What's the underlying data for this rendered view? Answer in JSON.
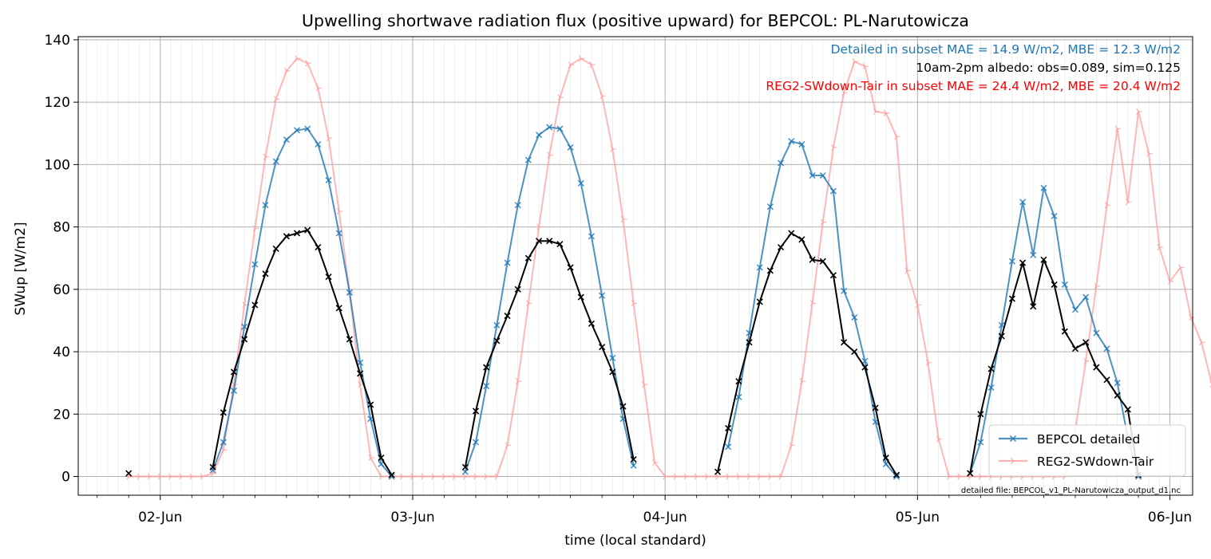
{
  "chart_data": {
    "type": "line",
    "title": "Upwelling shortwave radiation flux (positive upward) for BEPCOL: PL-Narutowicza",
    "xlabel": "time (local standard)",
    "ylabel": "SWup [W/m2]",
    "ylim": [
      -6,
      141
    ],
    "yticks": [
      0,
      20,
      40,
      60,
      80,
      100,
      120,
      140
    ],
    "xlim": [
      1.675,
      6.09
    ],
    "xticks": [
      {
        "label": "02-Jun",
        "day": 2
      },
      {
        "label": "03-Jun",
        "day": 3
      },
      {
        "label": "04-Jun",
        "day": 4
      },
      {
        "label": "05-Jun",
        "day": 5
      },
      {
        "label": "06-Jun",
        "day": 6
      }
    ],
    "grid": true,
    "legend_position": "lower-right",
    "annotations": [
      {
        "text": "Detailed in subset MAE = 14.9 W/m2, MBE = 12.3 W/m2",
        "color": "#1f77b4"
      },
      {
        "text": "10am-2pm albedo: obs=0.089, sim=0.125",
        "color": "#000000"
      },
      {
        "text": "REG2-SWdown-Tair in subset MAE = 24.4 W/m2, MBE = 20.4 W/m2",
        "color": "#ff0000"
      }
    ],
    "footnote": "detailed file: BEPCOL_v1_PL-Narutowicza_output_d1.nc",
    "time_step_hours": 1,
    "series": [
      {
        "name": "BEPCOL detailed",
        "color": "#1f77b4",
        "marker": "x",
        "segments": [
          {
            "start_day": 2,
            "start_hour": 5,
            "values": [
              2,
              11,
              27.5,
              48,
              68,
              87,
              101,
              108,
              111,
              111.5,
              106.5,
              95,
              78,
              59,
              36.5,
              18.5,
              4,
              0
            ]
          },
          {
            "start_day": 3,
            "start_hour": 5,
            "values": [
              1.5,
              11,
              29,
              48.5,
              68.5,
              87,
              101.5,
              109.5,
              112,
              111.5,
              105.5,
              94,
              77,
              58,
              38,
              18.5,
              3.5
            ]
          },
          {
            "start_day": 4,
            "start_hour": 6,
            "values": [
              9.5,
              25.5,
              46,
              67,
              86.5,
              100.5,
              107.5,
              106.5,
              96.5,
              96.5,
              91.5,
              59.5,
              51,
              37,
              17.5,
              4,
              0
            ]
          },
          {
            "start_day": 5,
            "start_hour": 5,
            "values": [
              1,
              11,
              28.5,
              48.5,
              69,
              88,
              71,
              92.5,
              83.5,
              61.5,
              53.5,
              57.5,
              46,
              41,
              30,
              12.5,
              0
            ]
          }
        ]
      },
      {
        "name": "REG2-SWdown-Tair",
        "color": "#ff9999",
        "marker": "tri",
        "segments": [
          {
            "start_day": 1,
            "start_hour": 21,
            "values": [
              0,
              0,
              0,
              0,
              0,
              0,
              0,
              0,
              1,
              8.5,
              29.5,
              55,
              79.5,
              102.5,
              121,
              130,
              134,
              132.5,
              124.5,
              108.5,
              85,
              59,
              29.5,
              6,
              0,
              0,
              0,
              0,
              0,
              0,
              0,
              0,
              0,
              0,
              0,
              0,
              10,
              30.5,
              55.5,
              80,
              103,
              121.5,
              132,
              134,
              132,
              122,
              105,
              82.5,
              55.5,
              29.5,
              4.5,
              0,
              0,
              0,
              0,
              0,
              0,
              0,
              0,
              0,
              0,
              0,
              0,
              10,
              30.5,
              55.5,
              81.5,
              105.5,
              123,
              133,
              131.5,
              117,
              116.5,
              109,
              66,
              55,
              36.5,
              12,
              0,
              0,
              0,
              0,
              0,
              0,
              0,
              0,
              0,
              0,
              0,
              0,
              15,
              37,
              61,
              87,
              111.5,
              88,
              117,
              103.5,
              73.5,
              62.5,
              67,
              51,
              43,
              29.5,
              9,
              0
            ]
          }
        ]
      },
      {
        "name": "",
        "color": "#000000",
        "marker": "x",
        "segments": [
          {
            "start_day": 1,
            "start_hour": 21,
            "values": [
              1
            ]
          },
          {
            "start_day": 2,
            "start_hour": 5,
            "values": [
              3,
              20.5,
              33.5,
              44,
              55,
              65,
              73,
              77,
              78,
              79,
              73.5,
              64,
              54,
              44,
              33,
              23,
              6,
              0.5
            ]
          },
          {
            "start_day": 3,
            "start_hour": 5,
            "values": [
              3,
              21,
              35,
              43.5,
              51.5,
              60,
              70,
              75.5,
              75.5,
              74.5,
              67,
              57.5,
              49,
              41.5,
              33.5,
              22.5,
              5.5
            ]
          },
          {
            "start_day": 4,
            "start_hour": 5,
            "values": [
              1.5,
              15.5,
              30.5,
              43,
              56,
              66,
              73.5,
              78,
              76,
              69.5,
              69,
              64.5,
              43,
              40,
              35,
              22,
              6,
              0.5
            ]
          },
          {
            "start_day": 5,
            "start_hour": 5,
            "values": [
              1,
              20,
              34.5,
              45,
              57,
              68.5,
              54.5,
              69.5,
              61.5,
              46.5,
              41,
              43,
              35,
              31,
              26,
              21.5,
              0.5
            ]
          }
        ]
      }
    ]
  }
}
